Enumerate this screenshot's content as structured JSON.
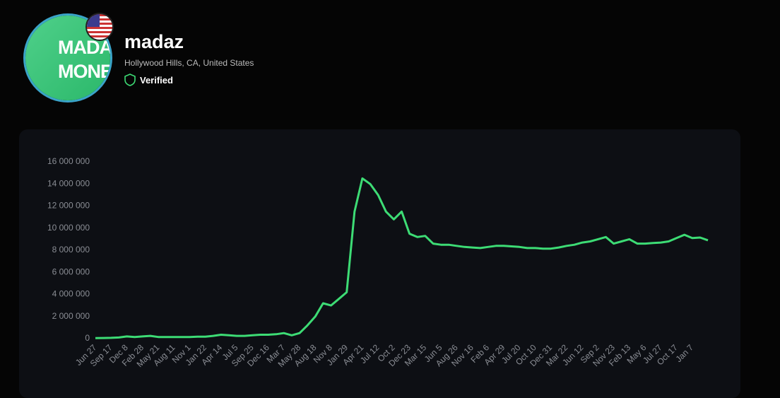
{
  "profile": {
    "name": "madaz",
    "location": "Hollywood Hills, CA, United States",
    "badge": "Verified",
    "avatar_lines": [
      "MADAZ",
      "MONEY"
    ]
  },
  "chart_data": {
    "type": "line",
    "color": "#3ddc75",
    "grid": false,
    "categories": [
      "Jun 27",
      null,
      "Sep 17",
      null,
      "Dec 8",
      null,
      "Feb 28",
      null,
      "May 21",
      null,
      "Aug 11",
      null,
      "Nov 1",
      null,
      "Jan 22",
      null,
      "Apr 14",
      null,
      "Jul 5",
      null,
      "Sep 25",
      null,
      "Dec 16",
      null,
      "Mar 7",
      null,
      "May 28",
      null,
      "Aug 18",
      null,
      "Nov 8",
      null,
      "Jan 29",
      null,
      "Apr 21",
      null,
      "Jul 12",
      null,
      "Oct 2",
      null,
      "Dec 23",
      null,
      "Mar 15",
      null,
      "Jun 5",
      null,
      "Aug 26",
      null,
      "Nov 16",
      null,
      "Feb 6",
      null,
      "Apr 29",
      null,
      "Jul 20",
      null,
      "Oct 10",
      null,
      "Dec 31",
      null,
      "Mar 22",
      null,
      "Jun 12",
      null,
      "Sep 2",
      null,
      "Nov 23",
      null,
      "Feb 13",
      null,
      "May 6",
      null,
      "Jul 27",
      null,
      "Oct 17",
      null,
      "Jan 7",
      null,
      null
    ],
    "values": [
      50000,
      60000,
      70000,
      100000,
      200000,
      150000,
      200000,
      250000,
      150000,
      150000,
      150000,
      150000,
      150000,
      180000,
      180000,
      250000,
      350000,
      300000,
      250000,
      250000,
      300000,
      350000,
      350000,
      400000,
      500000,
      300000,
      500000,
      1200000,
      2000000,
      3200000,
      3000000,
      3600000,
      4200000,
      11500000,
      14500000,
      14000000,
      13000000,
      11500000,
      10800000,
      11500000,
      9500000,
      9200000,
      9300000,
      8600000,
      8500000,
      8500000,
      8400000,
      8300000,
      8250000,
      8200000,
      8300000,
      8400000,
      8400000,
      8350000,
      8300000,
      8200000,
      8200000,
      8150000,
      8150000,
      8250000,
      8400000,
      8500000,
      8700000,
      8800000,
      9000000,
      9200000,
      8600000,
      8800000,
      9000000,
      8600000,
      8600000,
      8650000,
      8700000,
      8800000,
      9100000,
      9400000,
      9100000,
      9150000,
      8900000
    ],
    "ylim": [
      0,
      16000000
    ],
    "yticks": [
      {
        "value": 0,
        "label": "0"
      },
      {
        "value": 2000000,
        "label": "2 000 000"
      },
      {
        "value": 4000000,
        "label": "4 000 000"
      },
      {
        "value": 6000000,
        "label": "6 000 000"
      },
      {
        "value": 8000000,
        "label": "8 000 000"
      },
      {
        "value": 10000000,
        "label": "10 000 000"
      },
      {
        "value": 12000000,
        "label": "12 000 000"
      },
      {
        "value": 14000000,
        "label": "14 000 000"
      },
      {
        "value": 16000000,
        "label": "16 000 000"
      }
    ]
  }
}
